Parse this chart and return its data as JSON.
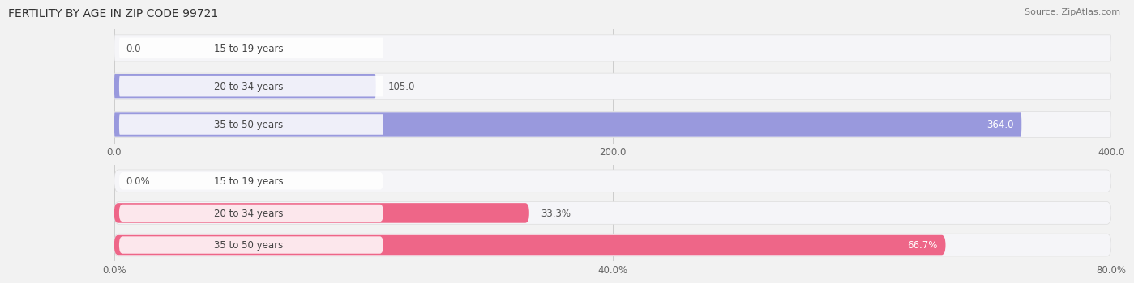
{
  "title": "FERTILITY BY AGE IN ZIP CODE 99721",
  "source": "Source: ZipAtlas.com",
  "top_chart": {
    "categories": [
      "15 to 19 years",
      "20 to 34 years",
      "35 to 50 years"
    ],
    "values": [
      0.0,
      105.0,
      364.0
    ],
    "xlim": [
      0,
      400
    ],
    "xticks": [
      0.0,
      200.0,
      400.0
    ],
    "bar_color": "#9999dd",
    "bar_bg_color": "#e8e8ec",
    "label_inside_bg": "#f0f0f8"
  },
  "bottom_chart": {
    "categories": [
      "15 to 19 years",
      "20 to 34 years",
      "35 to 50 years"
    ],
    "values": [
      0.0,
      33.3,
      66.7
    ],
    "xlim": [
      0,
      80
    ],
    "xticks": [
      0.0,
      40.0,
      80.0
    ],
    "bar_color": "#ee6688",
    "bar_bg_color": "#eee0e8",
    "label_inside_bg": "#f8f0f4"
  },
  "fig_bg_color": "#f2f2f2",
  "row_bg_color": "#f8f8f8",
  "title_fontsize": 10,
  "source_fontsize": 8,
  "label_fontsize": 8.5,
  "tick_fontsize": 8.5,
  "category_fontsize": 8.5,
  "value_label_fontsize": 8.5
}
